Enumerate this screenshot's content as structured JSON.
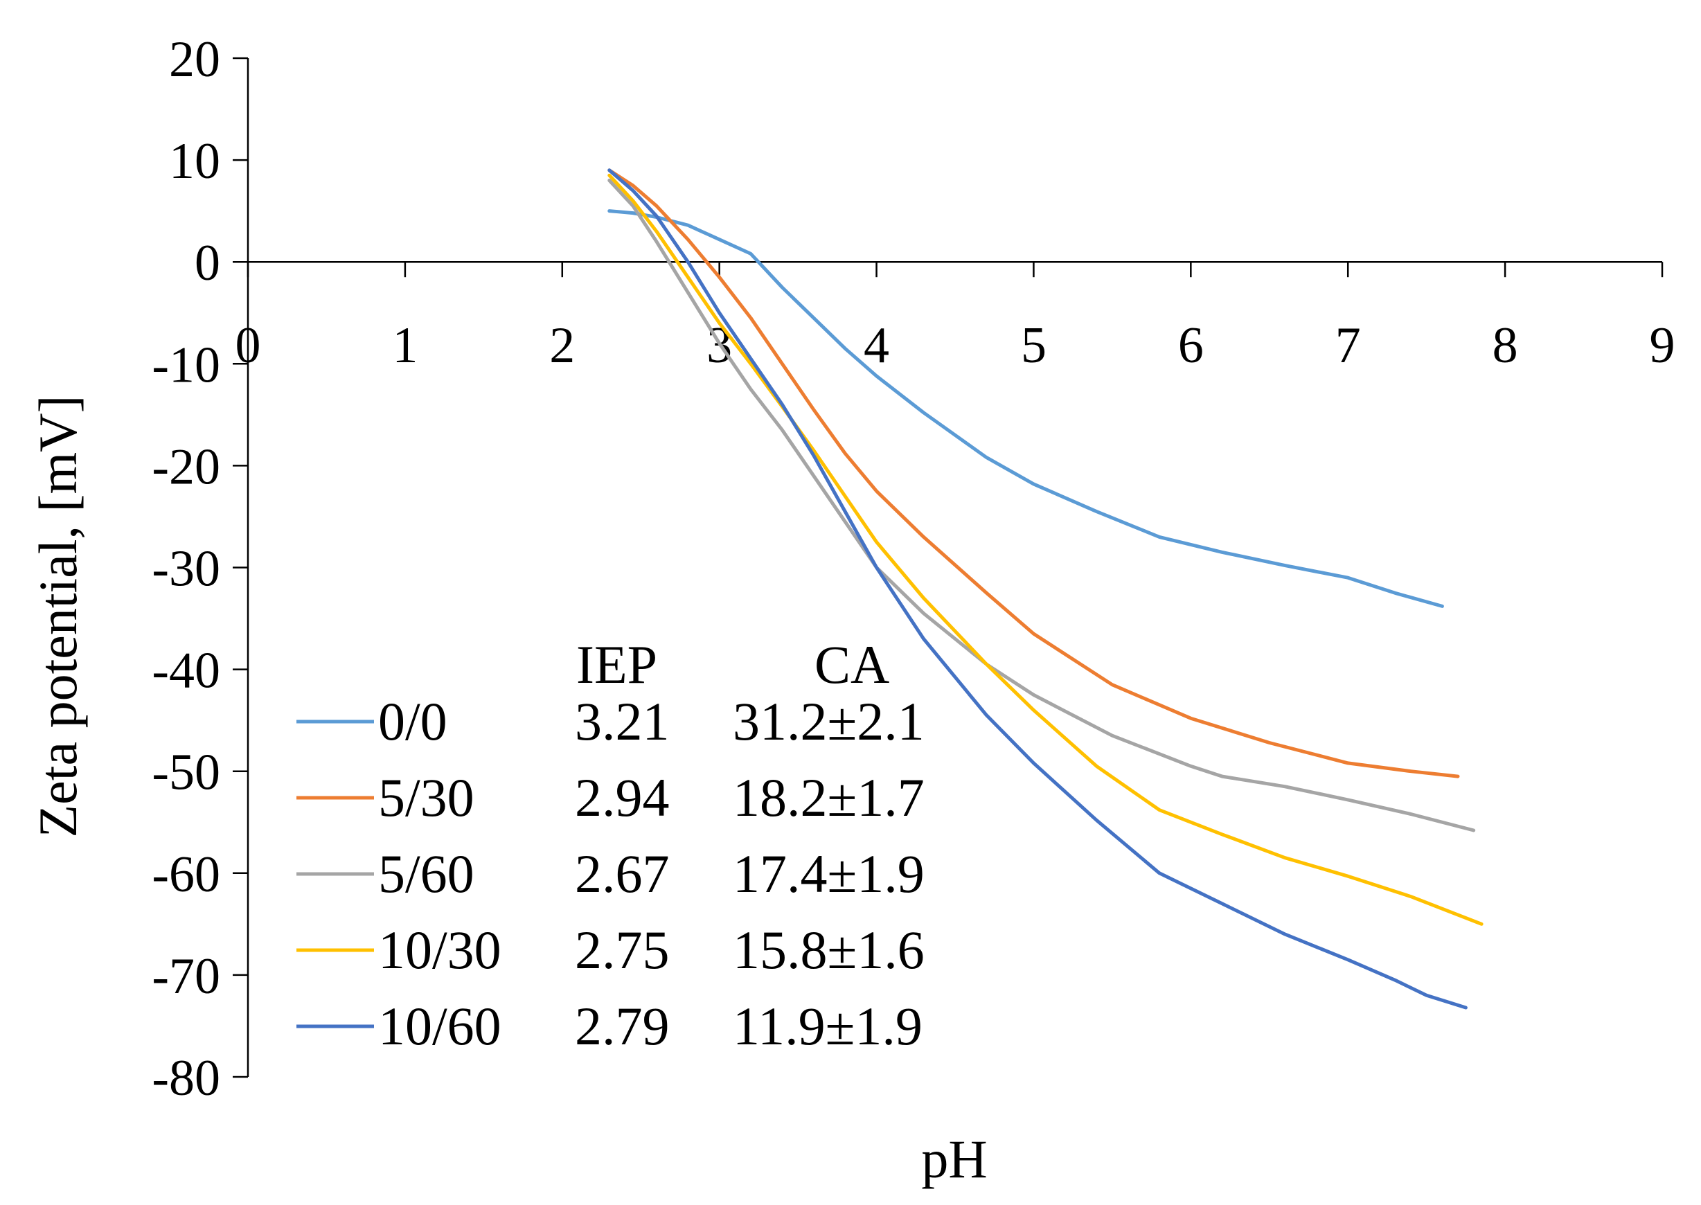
{
  "chart_data": {
    "type": "line",
    "title": "",
    "xlabel": "pH",
    "ylabel": "Zeta potential, [mV]",
    "xlim": [
      0,
      9
    ],
    "ylim": [
      -80,
      20
    ],
    "x_ticks": [
      "0",
      "1",
      "2",
      "3",
      "4",
      "5",
      "6",
      "7",
      "8",
      "9"
    ],
    "y_ticks": [
      "20",
      "10",
      "0",
      "-10",
      "-20",
      "-30",
      "-40",
      "-50",
      "-60",
      "-70",
      "-80"
    ],
    "grid": false,
    "legend_position": "bottom-left",
    "legend_headers": {
      "iep": "IEP",
      "ca": "CA"
    },
    "series": [
      {
        "name": "0/0",
        "iep": "3.21",
        "ca": "31.2±2.1",
        "color": "#5B9BD5",
        "x": [
          2.3,
          2.45,
          2.6,
          2.8,
          3.0,
          3.2,
          3.4,
          3.6,
          3.8,
          4.0,
          4.3,
          4.7,
          5.0,
          5.4,
          5.8,
          6.2,
          6.6,
          7.0,
          7.3,
          7.6
        ],
        "y": [
          5,
          4.8,
          4.4,
          3.6,
          2.2,
          0.8,
          -2.5,
          -5.5,
          -8.5,
          -11.2,
          -14.8,
          -19.2,
          -21.8,
          -24.5,
          -27,
          -28.5,
          -29.8,
          -31,
          -32.5,
          -33.8
        ]
      },
      {
        "name": "5/30",
        "iep": "2.94",
        "ca": "18.2±1.7",
        "color": "#ED7D31",
        "x": [
          2.3,
          2.45,
          2.6,
          2.8,
          3.0,
          3.2,
          3.4,
          3.6,
          3.8,
          4.0,
          4.3,
          4.7,
          5.0,
          5.5,
          6.0,
          6.5,
          7.0,
          7.4,
          7.7
        ],
        "y": [
          9,
          7.5,
          5.5,
          2.2,
          -1.5,
          -5.5,
          -10,
          -14.5,
          -18.8,
          -22.5,
          -27,
          -32.5,
          -36.5,
          -41.5,
          -44.8,
          -47.2,
          -49.2,
          -50,
          -50.5
        ]
      },
      {
        "name": "5/60",
        "iep": "2.67",
        "ca": "17.4±1.9",
        "color": "#A5A5A5",
        "x": [
          2.3,
          2.45,
          2.6,
          2.8,
          3.0,
          3.2,
          3.4,
          3.6,
          3.8,
          4.0,
          4.3,
          4.7,
          5.0,
          5.5,
          6.0,
          6.2,
          6.6,
          7.0,
          7.4,
          7.8
        ],
        "y": [
          8,
          5.5,
          2,
          -3,
          -8,
          -12.5,
          -16.5,
          -21,
          -25.5,
          -30,
          -34.5,
          -39.5,
          -42.5,
          -46.5,
          -49.5,
          -50.5,
          -51.5,
          -52.8,
          -54.2,
          -55.8
        ]
      },
      {
        "name": "10/30",
        "iep": "2.75",
        "ca": "15.8±1.6",
        "color": "#FFC000",
        "x": [
          2.3,
          2.45,
          2.6,
          2.8,
          3.0,
          3.2,
          3.4,
          3.6,
          3.8,
          4.0,
          4.3,
          4.7,
          5.0,
          5.4,
          5.8,
          6.2,
          6.6,
          7.0,
          7.4,
          7.85
        ],
        "y": [
          8.5,
          6,
          3,
          -1.5,
          -6,
          -10,
          -14.2,
          -18.5,
          -23,
          -27.5,
          -33,
          -39.5,
          -44,
          -49.5,
          -53.8,
          -56.2,
          -58.5,
          -60.3,
          -62.3,
          -65
        ]
      },
      {
        "name": "10/60",
        "iep": "2.79",
        "ca": "11.9±1.9",
        "color": "#4472C4",
        "x": [
          2.3,
          2.45,
          2.6,
          2.8,
          3.0,
          3.2,
          3.4,
          3.6,
          3.8,
          4.0,
          4.3,
          4.7,
          5.0,
          5.4,
          5.8,
          6.2,
          6.6,
          7.0,
          7.3,
          7.5,
          7.75
        ],
        "y": [
          9,
          7,
          4.5,
          0,
          -5,
          -9.5,
          -14,
          -19,
          -24.5,
          -30,
          -37,
          -44.5,
          -49.2,
          -54.8,
          -60,
          -63,
          -66,
          -68.5,
          -70.5,
          -72,
          -73.2
        ]
      }
    ]
  }
}
